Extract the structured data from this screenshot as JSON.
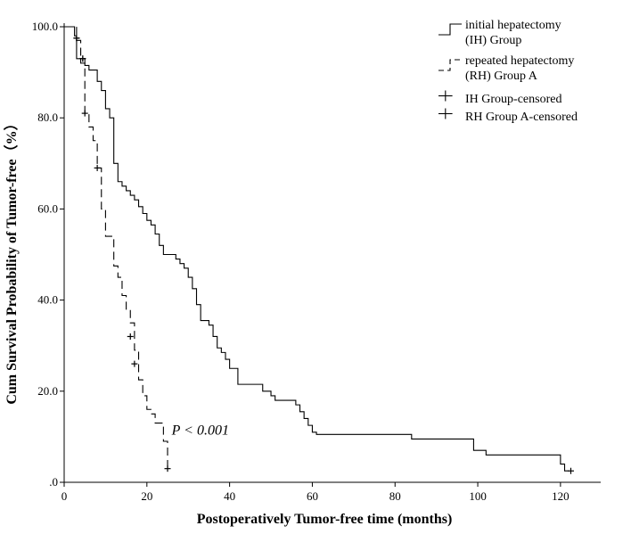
{
  "chart_data": {
    "type": "line",
    "title": "",
    "xlabel": "Postoperatively Tumor-free time (months)",
    "ylabel": "Cum Survival Probability of Tumor-free（%）",
    "xlim": [
      0,
      128
    ],
    "ylim": [
      0,
      100
    ],
    "xticks": [
      0,
      20,
      40,
      60,
      80,
      100,
      120
    ],
    "yticks": [
      0,
      20,
      40,
      60,
      80,
      100
    ],
    "xtick_labels": [
      "0",
      "20",
      "40",
      "60",
      "80",
      "100",
      "120"
    ],
    "ytick_labels": [
      ".0",
      "20.0",
      "40.0",
      "60.0",
      "80.0",
      "100.0"
    ],
    "ytick_labels_full": [
      "0.0",
      "20.0",
      "40.0",
      "60.0",
      "80.0",
      "100.0"
    ],
    "grid": false,
    "legend_position": "top-right",
    "legend": [
      {
        "lines": [
          "initial hepatectomy",
          "(IH) Group"
        ],
        "style": "solid-step"
      },
      {
        "lines": [
          "repeated hepatectomy",
          "(RH) Group A"
        ],
        "style": "dashed-step"
      },
      {
        "lines": [
          "IH Group-censored"
        ],
        "style": "cross"
      },
      {
        "lines": [
          "RH Group A-censored"
        ],
        "style": "cross"
      }
    ],
    "annotation": "P < 0.001",
    "annotation_pos": {
      "x": 26,
      "y": 10.5
    },
    "series": [
      {
        "name": "initial hepatectomy (IH) Group",
        "style": "solid",
        "steps": [
          [
            0,
            100
          ],
          [
            2.5,
            98
          ],
          [
            3,
            93
          ],
          [
            4,
            92
          ],
          [
            5,
            91.5
          ],
          [
            6,
            90.5
          ],
          [
            8,
            88
          ],
          [
            9,
            86
          ],
          [
            10,
            82
          ],
          [
            11,
            80
          ],
          [
            12,
            70
          ],
          [
            13,
            66
          ],
          [
            14,
            65
          ],
          [
            15,
            64
          ],
          [
            16,
            63
          ],
          [
            17,
            62
          ],
          [
            18,
            60.5
          ],
          [
            19,
            59
          ],
          [
            20,
            57.5
          ],
          [
            21,
            56.5
          ],
          [
            22,
            54.5
          ],
          [
            23,
            52
          ],
          [
            24,
            50
          ],
          [
            27,
            49
          ],
          [
            28,
            48
          ],
          [
            29,
            47
          ],
          [
            30,
            45
          ],
          [
            31,
            42.5
          ],
          [
            32,
            39
          ],
          [
            33,
            35.5
          ],
          [
            35,
            34.5
          ],
          [
            36,
            32
          ],
          [
            37,
            29.5
          ],
          [
            38,
            28.5
          ],
          [
            39,
            27
          ],
          [
            40,
            25
          ],
          [
            42,
            21.5
          ],
          [
            48,
            20
          ],
          [
            50,
            19
          ],
          [
            51,
            18
          ],
          [
            56,
            17
          ],
          [
            57,
            15.5
          ],
          [
            58,
            14
          ],
          [
            59,
            12.5
          ],
          [
            60,
            11
          ],
          [
            61,
            10.5
          ],
          [
            84,
            9.5
          ],
          [
            99,
            7
          ],
          [
            102,
            6
          ],
          [
            120,
            4
          ],
          [
            121,
            2.5
          ],
          [
            122,
            2.5
          ]
        ],
        "censored": [
          [
            3,
            97.5
          ],
          [
            4.5,
            93
          ],
          [
            122.5,
            2.5
          ]
        ]
      },
      {
        "name": "repeated hepatectomy (RH) Group A",
        "style": "dashed",
        "steps": [
          [
            0,
            100
          ],
          [
            3,
            97
          ],
          [
            4,
            93
          ],
          [
            5,
            81
          ],
          [
            6,
            78
          ],
          [
            7,
            75
          ],
          [
            8,
            69
          ],
          [
            9,
            60
          ],
          [
            10,
            54
          ],
          [
            12,
            47.5
          ],
          [
            13,
            45
          ],
          [
            14,
            41
          ],
          [
            15,
            38
          ],
          [
            16,
            35
          ],
          [
            17,
            29
          ],
          [
            18,
            22.5
          ],
          [
            19,
            19
          ],
          [
            20,
            16
          ],
          [
            21,
            15
          ],
          [
            22,
            13
          ],
          [
            24,
            9
          ],
          [
            25,
            3
          ]
        ],
        "censored": [
          [
            3,
            97.5
          ],
          [
            4.5,
            93
          ],
          [
            5,
            81
          ],
          [
            8,
            69
          ],
          [
            16,
            32
          ],
          [
            17,
            26
          ],
          [
            25,
            3
          ]
        ]
      }
    ]
  }
}
